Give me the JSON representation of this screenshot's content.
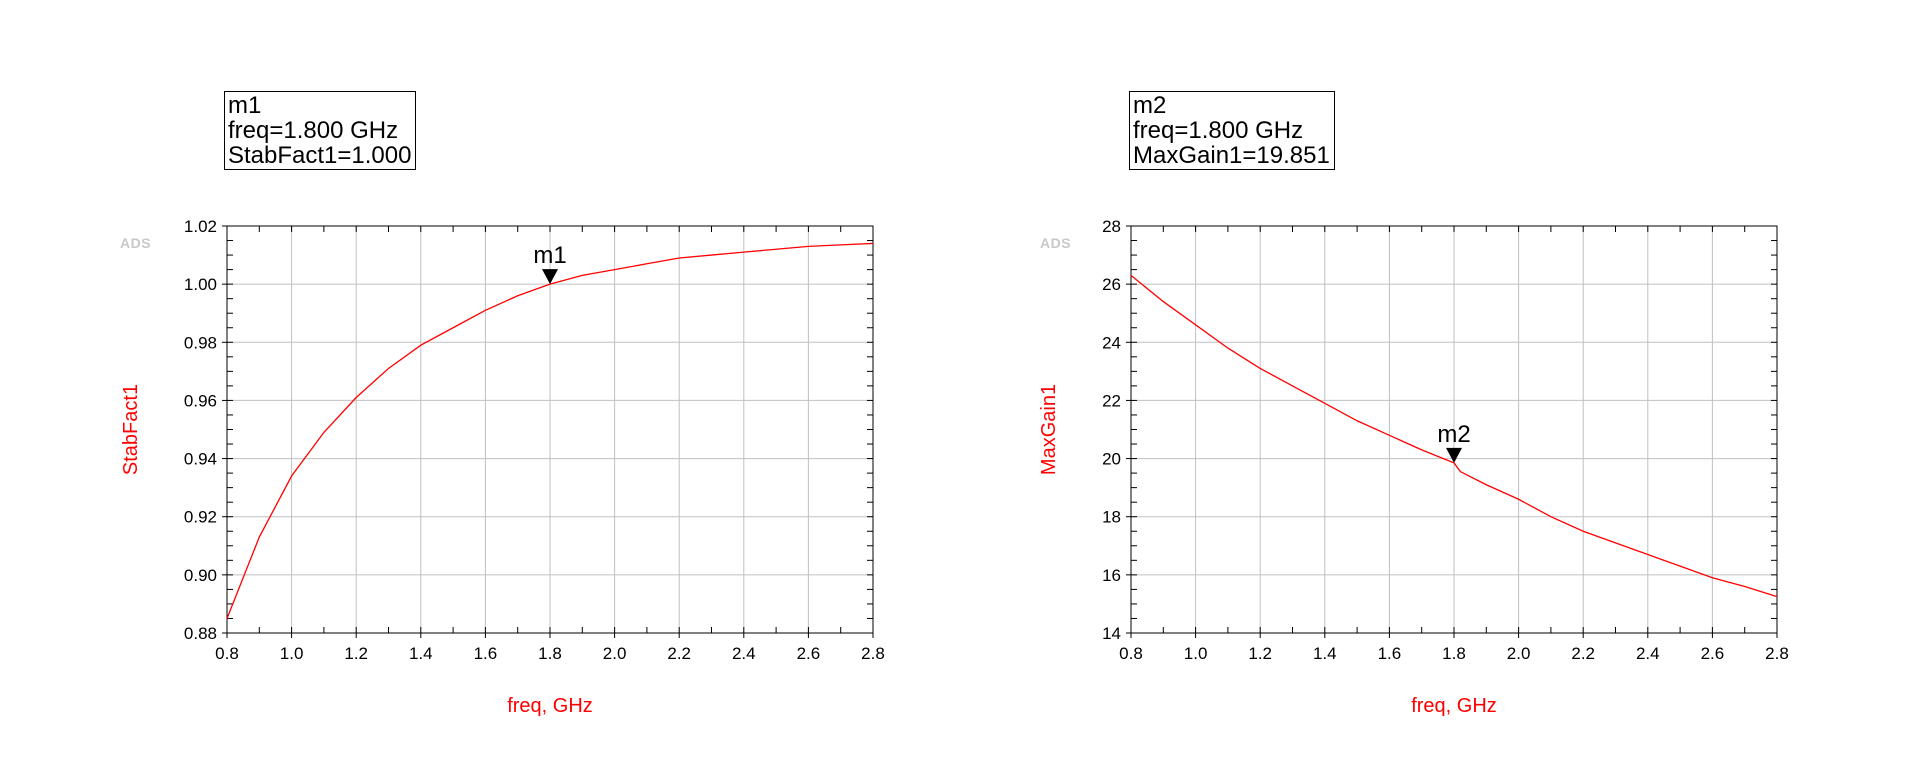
{
  "charts": [
    {
      "id": "left",
      "marker_box": {
        "lines": [
          "m1",
          "freq=1.800 GHz",
          "StabFact1=1.000"
        ]
      },
      "watermark": "ADS"
    },
    {
      "id": "right",
      "marker_box": {
        "lines": [
          "m2",
          "freq=1.800 GHz",
          "MaxGain1=19.851"
        ]
      },
      "watermark": "ADS"
    }
  ],
  "colors": {
    "trace": "#ff0000",
    "axis_title": "#ff0000",
    "grid": "#c0c0c0",
    "frame": "#000000"
  },
  "chart_data": [
    {
      "type": "line",
      "xlabel": "freq, GHz",
      "ylabel": "StabFact1",
      "xlim": [
        0.8,
        2.8
      ],
      "ylim": [
        0.88,
        1.02
      ],
      "x_ticks": [
        0.8,
        1.0,
        1.2,
        1.4,
        1.6,
        1.8,
        2.0,
        2.2,
        2.4,
        2.6,
        2.8
      ],
      "x_tick_labels": [
        "0.8",
        "1.0",
        "1.2",
        "1.4",
        "1.6",
        "1.8",
        "2.0",
        "2.2",
        "2.4",
        "2.6",
        "2.8"
      ],
      "y_ticks": [
        0.88,
        0.9,
        0.92,
        0.94,
        0.96,
        0.98,
        1.0,
        1.02
      ],
      "y_tick_labels": [
        "0.88",
        "0.90",
        "0.92",
        "0.94",
        "0.96",
        "0.98",
        "1.00",
        "1.02"
      ],
      "grid": true,
      "series": [
        {
          "color": "#ff0000",
          "x": [
            0.8,
            0.9,
            1.0,
            1.1,
            1.2,
            1.3,
            1.4,
            1.5,
            1.6,
            1.7,
            1.8,
            1.9,
            2.0,
            2.1,
            2.2,
            2.3,
            2.4,
            2.5,
            2.6,
            2.7,
            2.8
          ],
          "y": [
            0.885,
            0.913,
            0.934,
            0.949,
            0.961,
            0.971,
            0.979,
            0.985,
            0.991,
            0.996,
            1.0,
            1.003,
            1.005,
            1.007,
            1.009,
            1.01,
            1.011,
            1.012,
            1.013,
            1.0135,
            1.014
          ]
        }
      ],
      "markers": [
        {
          "name": "m1",
          "x": 1.8,
          "y": 1.0
        }
      ]
    },
    {
      "type": "line",
      "xlabel": "freq, GHz",
      "ylabel": "MaxGain1",
      "xlim": [
        0.8,
        2.8
      ],
      "ylim": [
        14,
        28
      ],
      "x_ticks": [
        0.8,
        1.0,
        1.2,
        1.4,
        1.6,
        1.8,
        2.0,
        2.2,
        2.4,
        2.6,
        2.8
      ],
      "x_tick_labels": [
        "0.8",
        "1.0",
        "1.2",
        "1.4",
        "1.6",
        "1.8",
        "2.0",
        "2.2",
        "2.4",
        "2.6",
        "2.8"
      ],
      "y_ticks": [
        14,
        16,
        18,
        20,
        22,
        24,
        26,
        28
      ],
      "y_tick_labels": [
        "14",
        "16",
        "18",
        "20",
        "22",
        "24",
        "26",
        "28"
      ],
      "grid": true,
      "series": [
        {
          "color": "#ff0000",
          "x": [
            0.8,
            0.9,
            1.0,
            1.1,
            1.2,
            1.3,
            1.4,
            1.5,
            1.6,
            1.7,
            1.8,
            1.82,
            1.9,
            2.0,
            2.1,
            2.2,
            2.3,
            2.4,
            2.5,
            2.6,
            2.7,
            2.8
          ],
          "y": [
            26.3,
            25.4,
            24.6,
            23.8,
            23.1,
            22.5,
            21.9,
            21.3,
            20.8,
            20.3,
            19.85,
            19.55,
            19.1,
            18.6,
            18.0,
            17.5,
            17.1,
            16.7,
            16.3,
            15.9,
            15.6,
            15.25
          ]
        }
      ],
      "markers": [
        {
          "name": "m2",
          "x": 1.8,
          "y": 19.851
        }
      ]
    }
  ]
}
